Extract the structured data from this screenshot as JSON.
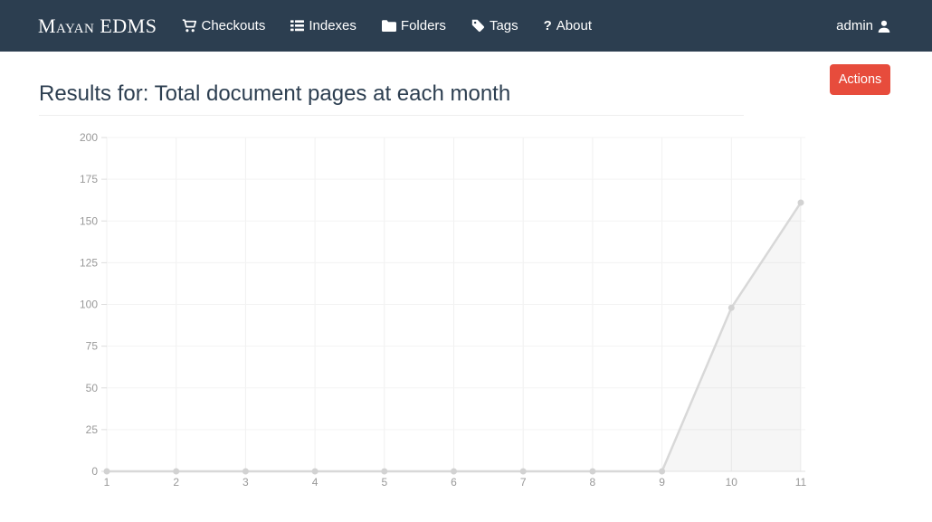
{
  "colors": {
    "header_bg": "#2c3e50",
    "header_text": "#ffffff",
    "title_text": "#2c3e50",
    "accent_red": "#e74c3c",
    "divider": "#eeeeee"
  },
  "header": {
    "logo": "Mayan EDMS",
    "nav": [
      {
        "label": "Checkouts",
        "icon": "shopping-cart-icon"
      },
      {
        "label": "Indexes",
        "icon": "list-icon"
      },
      {
        "label": "Folders",
        "icon": "folder-icon"
      },
      {
        "label": "Tags",
        "icon": "tag-icon"
      },
      {
        "label": "About",
        "icon": "question-icon"
      }
    ],
    "user": {
      "label": "admin",
      "icon": "user-icon"
    }
  },
  "page": {
    "title": "Results for: Total document pages at each month",
    "actions_button_label": "Actions"
  },
  "chart_data": {
    "type": "area",
    "title": "Total document pages at each month",
    "x": [
      1,
      2,
      3,
      4,
      5,
      6,
      7,
      8,
      9,
      10,
      11
    ],
    "series": [
      {
        "name": "Total document pages",
        "values": [
          0,
          0,
          0,
          0,
          0,
          0,
          0,
          0,
          0,
          98,
          161
        ]
      }
    ],
    "xlabel": "",
    "ylabel": "",
    "xlim": [
      1,
      11
    ],
    "ylim": [
      0,
      200
    ],
    "yticks": [
      0,
      25,
      50,
      75,
      100,
      125,
      150,
      175,
      200
    ],
    "grid": true,
    "legend": false,
    "colors": {
      "line": "#d8d8d8",
      "point": "#d2d2d2",
      "fill": "rgba(0,0,0,0.035)",
      "grid_v": "#f0f0f0",
      "grid_h": "#f3f3f3",
      "axis": "#e2e2e2",
      "tick": "#dddddd",
      "tick_label": "#999999"
    }
  }
}
